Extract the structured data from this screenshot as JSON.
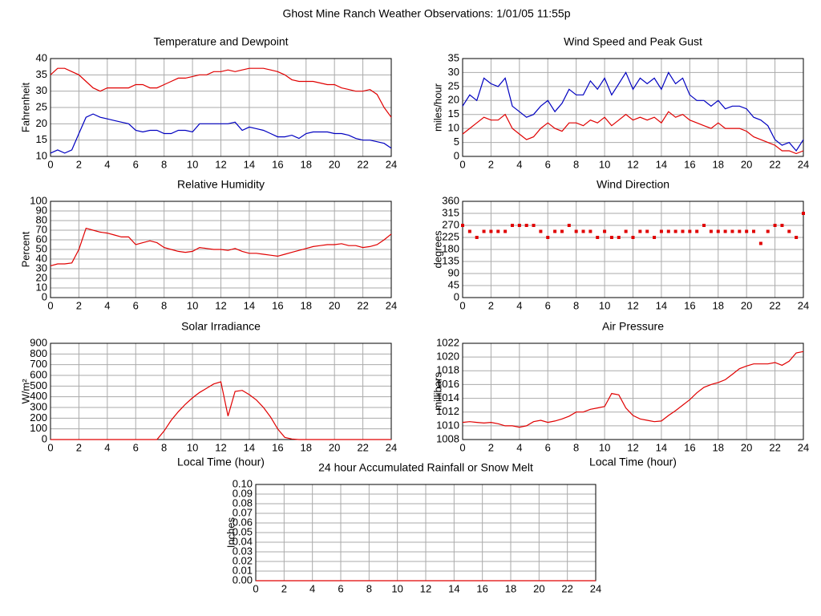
{
  "title": "Ghost Mine Ranch Weather Observations: 1/01/05 11:55p",
  "chart_data": [
    {
      "type": "line",
      "title": "Temperature and Dewpoint",
      "ylabel": "Fahrenheit",
      "grid": true,
      "x": [
        0,
        0.5,
        1,
        1.5,
        2,
        2.5,
        3,
        3.5,
        4,
        4.5,
        5,
        5.5,
        6,
        6.5,
        7,
        7.5,
        8,
        8.5,
        9,
        9.5,
        10,
        10.5,
        11,
        11.5,
        12,
        12.5,
        13,
        13.5,
        14,
        14.5,
        15,
        15.5,
        16,
        16.5,
        17,
        17.5,
        18,
        18.5,
        19,
        19.5,
        20,
        20.5,
        21,
        21.5,
        22,
        22.5,
        23,
        23.5,
        24
      ],
      "xlim": [
        0,
        24
      ],
      "xticks": [
        0,
        2,
        4,
        6,
        8,
        10,
        12,
        14,
        16,
        18,
        20,
        22,
        24
      ],
      "ylim": [
        10,
        40
      ],
      "yticks": [
        10,
        15,
        20,
        25,
        30,
        35,
        40
      ],
      "series": [
        {
          "name": "Temperature",
          "color": "#e00000",
          "values": [
            35,
            37,
            37,
            36,
            35,
            33,
            31,
            30,
            31,
            31,
            31,
            31,
            32,
            32,
            31,
            31,
            32,
            33,
            34,
            34,
            34.5,
            35,
            35,
            36,
            36,
            36.5,
            36,
            36.5,
            37,
            37,
            37,
            36.5,
            36,
            35,
            33.5,
            33,
            33,
            33,
            32.5,
            32,
            32,
            31,
            30.5,
            30,
            30,
            30.5,
            29,
            25,
            22
          ]
        },
        {
          "name": "Dewpoint",
          "color": "#0000c0",
          "values": [
            11,
            12,
            11,
            12,
            17,
            22,
            23,
            22,
            21.5,
            21,
            20.5,
            20,
            18,
            17.5,
            18,
            18,
            17,
            17,
            18,
            18,
            17.5,
            20,
            20,
            20,
            20,
            20,
            20.5,
            18,
            19,
            18.5,
            18,
            17,
            16,
            16,
            16.5,
            15.5,
            17,
            17.5,
            17.5,
            17.5,
            17,
            17,
            16.5,
            15.5,
            15,
            15,
            14.5,
            14,
            12.5
          ]
        }
      ]
    },
    {
      "type": "line",
      "title": "Wind Speed and Peak Gust",
      "ylabel": "miles/hour",
      "grid": true,
      "x": [
        0,
        0.5,
        1,
        1.5,
        2,
        2.5,
        3,
        3.5,
        4,
        4.5,
        5,
        5.5,
        6,
        6.5,
        7,
        7.5,
        8,
        8.5,
        9,
        9.5,
        10,
        10.5,
        11,
        11.5,
        12,
        12.5,
        13,
        13.5,
        14,
        14.5,
        15,
        15.5,
        16,
        16.5,
        17,
        17.5,
        18,
        18.5,
        19,
        19.5,
        20,
        20.5,
        21,
        21.5,
        22,
        22.5,
        23,
        23.5,
        24
      ],
      "xlim": [
        0,
        24
      ],
      "xticks": [
        0,
        2,
        4,
        6,
        8,
        10,
        12,
        14,
        16,
        18,
        20,
        22,
        24
      ],
      "ylim": [
        0,
        35
      ],
      "yticks": [
        0,
        5,
        10,
        15,
        20,
        25,
        30,
        35
      ],
      "series": [
        {
          "name": "Peak Gust",
          "color": "#0000c0",
          "values": [
            18,
            22,
            20,
            28,
            26,
            25,
            28,
            18,
            16,
            14,
            15,
            18,
            20,
            16,
            19,
            24,
            22,
            22,
            27,
            24,
            28,
            22,
            26,
            30,
            24,
            28,
            26,
            28,
            24,
            30,
            26,
            28,
            22,
            20,
            20,
            18,
            20,
            17,
            18,
            18,
            17,
            14,
            13,
            11,
            6,
            4,
            5,
            2,
            6
          ]
        },
        {
          "name": "Wind Speed",
          "color": "#e00000",
          "values": [
            8,
            10,
            12,
            14,
            13,
            13,
            15,
            10,
            8,
            6,
            7,
            10,
            12,
            10,
            9,
            12,
            12,
            11,
            13,
            12,
            14,
            11,
            13,
            15,
            13,
            14,
            13,
            14,
            12,
            16,
            14,
            15,
            13,
            12,
            11,
            10,
            12,
            10,
            10,
            10,
            9,
            7,
            6,
            5,
            4,
            2,
            2,
            1,
            2
          ]
        }
      ]
    },
    {
      "type": "line",
      "title": "Relative Humidity",
      "ylabel": "Percent",
      "grid": true,
      "x": [
        0,
        0.5,
        1,
        1.5,
        2,
        2.5,
        3,
        3.5,
        4,
        4.5,
        5,
        5.5,
        6,
        6.5,
        7,
        7.5,
        8,
        8.5,
        9,
        9.5,
        10,
        10.5,
        11,
        11.5,
        12,
        12.5,
        13,
        13.5,
        14,
        14.5,
        15,
        15.5,
        16,
        16.5,
        17,
        17.5,
        18,
        18.5,
        19,
        19.5,
        20,
        20.5,
        21,
        21.5,
        22,
        22.5,
        23,
        23.5,
        24
      ],
      "xlim": [
        0,
        24
      ],
      "xticks": [
        0,
        2,
        4,
        6,
        8,
        10,
        12,
        14,
        16,
        18,
        20,
        22,
        24
      ],
      "ylim": [
        0,
        100
      ],
      "yticks": [
        0,
        10,
        20,
        30,
        40,
        50,
        60,
        70,
        80,
        90,
        100
      ],
      "series": [
        {
          "name": "Relative Humidity",
          "color": "#e00000",
          "values": [
            33,
            35,
            35,
            36,
            50,
            72,
            70,
            68,
            67,
            65,
            63,
            63,
            55,
            57,
            59,
            57,
            52,
            50,
            48,
            47,
            48,
            52,
            51,
            50,
            50,
            49,
            51,
            48,
            46,
            46,
            45,
            44,
            43,
            45,
            47,
            49,
            51,
            53,
            54,
            55,
            55,
            56,
            54,
            54,
            52,
            53,
            55,
            60,
            66
          ]
        }
      ]
    },
    {
      "type": "scatter",
      "title": "Wind Direction",
      "ylabel": "degrees",
      "grid": true,
      "x": [
        0,
        0.5,
        1,
        1.5,
        2,
        2.5,
        3,
        3.5,
        4,
        4.5,
        5,
        5.5,
        6,
        6.5,
        7,
        7.5,
        8,
        8.5,
        9,
        9.5,
        10,
        10.5,
        11,
        11.5,
        12,
        12.5,
        13,
        13.5,
        14,
        14.5,
        15,
        15.5,
        16,
        16.5,
        17,
        17.5,
        18,
        18.5,
        19,
        19.5,
        20,
        20.5,
        21,
        21.5,
        22,
        22.5,
        23,
        23.5,
        24
      ],
      "xlim": [
        0,
        24
      ],
      "xticks": [
        0,
        2,
        4,
        6,
        8,
        10,
        12,
        14,
        16,
        18,
        20,
        22,
        24
      ],
      "ylim": [
        0,
        360
      ],
      "yticks": [
        0,
        45,
        90,
        135,
        180,
        225,
        270,
        315,
        360
      ],
      "series": [
        {
          "name": "Wind Direction",
          "color": "#e00000",
          "values": [
            270,
            247.5,
            225,
            247.5,
            247.5,
            247.5,
            247.5,
            270,
            270,
            270,
            270,
            247.5,
            225,
            247.5,
            247.5,
            270,
            247.5,
            247.5,
            247.5,
            225,
            247.5,
            225,
            225,
            247.5,
            225,
            247.5,
            247.5,
            225,
            247.5,
            247.5,
            247.5,
            247.5,
            247.5,
            247.5,
            270,
            247.5,
            247.5,
            247.5,
            247.5,
            247.5,
            247.5,
            247.5,
            202.5,
            247.5,
            270,
            270,
            247.5,
            225,
            315
          ]
        }
      ]
    },
    {
      "type": "line",
      "title": "Solar Irradiance",
      "ylabel": "W/m²",
      "xlabel": "Local Time (hour)",
      "grid": true,
      "x": [
        0,
        0.5,
        1,
        1.5,
        2,
        2.5,
        3,
        3.5,
        4,
        4.5,
        5,
        5.5,
        6,
        6.5,
        7,
        7.5,
        8,
        8.5,
        9,
        9.5,
        10,
        10.5,
        11,
        11.5,
        12,
        12.5,
        13,
        13.5,
        14,
        14.5,
        15,
        15.5,
        16,
        16.5,
        17,
        17.5,
        18,
        18.5,
        19,
        19.5,
        20,
        20.5,
        21,
        21.5,
        22,
        22.5,
        23,
        23.5,
        24
      ],
      "xlim": [
        0,
        24
      ],
      "xticks": [
        0,
        2,
        4,
        6,
        8,
        10,
        12,
        14,
        16,
        18,
        20,
        22,
        24
      ],
      "ylim": [
        0,
        900
      ],
      "yticks": [
        0,
        100,
        200,
        300,
        400,
        500,
        600,
        700,
        800,
        900
      ],
      "series": [
        {
          "name": "Solar Irradiance",
          "color": "#e00000",
          "values": [
            0,
            0,
            0,
            0,
            0,
            0,
            0,
            0,
            0,
            0,
            0,
            0,
            0,
            0,
            0,
            0,
            80,
            180,
            260,
            330,
            390,
            440,
            480,
            520,
            540,
            220,
            450,
            460,
            420,
            370,
            300,
            210,
            100,
            20,
            5,
            0,
            0,
            0,
            0,
            0,
            0,
            0,
            0,
            0,
            0,
            0,
            0,
            0,
            0
          ]
        }
      ]
    },
    {
      "type": "line",
      "title": "Air Pressure",
      "ylabel": "millibars",
      "xlabel": "Local Time (hour)",
      "grid": true,
      "x": [
        0,
        0.5,
        1,
        1.5,
        2,
        2.5,
        3,
        3.5,
        4,
        4.5,
        5,
        5.5,
        6,
        6.5,
        7,
        7.5,
        8,
        8.5,
        9,
        9.5,
        10,
        10.5,
        11,
        11.5,
        12,
        12.5,
        13,
        13.5,
        14,
        14.5,
        15,
        15.5,
        16,
        16.5,
        17,
        17.5,
        18,
        18.5,
        19,
        19.5,
        20,
        20.5,
        21,
        21.5,
        22,
        22.5,
        23,
        23.5,
        24
      ],
      "xlim": [
        0,
        24
      ],
      "xticks": [
        0,
        2,
        4,
        6,
        8,
        10,
        12,
        14,
        16,
        18,
        20,
        22,
        24
      ],
      "ylim": [
        1008,
        1022
      ],
      "yticks": [
        1008,
        1010,
        1012,
        1014,
        1016,
        1018,
        1020,
        1022
      ],
      "series": [
        {
          "name": "Air Pressure",
          "color": "#e00000",
          "values": [
            1010.5,
            1010.6,
            1010.5,
            1010.4,
            1010.5,
            1010.3,
            1010,
            1010,
            1009.8,
            1010,
            1010.6,
            1010.8,
            1010.5,
            1010.7,
            1011,
            1011.4,
            1012,
            1012,
            1012.4,
            1012.6,
            1012.8,
            1014.7,
            1014.5,
            1012.6,
            1011.5,
            1011,
            1010.8,
            1010.6,
            1010.7,
            1011.5,
            1012.2,
            1013,
            1013.8,
            1014.8,
            1015.6,
            1016,
            1016.3,
            1016.7,
            1017.5,
            1018.3,
            1018.7,
            1019,
            1019,
            1019,
            1019.2,
            1018.8,
            1019.4,
            1020.6,
            1020.8
          ]
        }
      ]
    },
    {
      "type": "line",
      "title": "24 hour Accumulated Rainfall or Snow Melt",
      "ylabel": "Inches",
      "grid": true,
      "x": [
        0,
        0.5,
        1,
        1.5,
        2,
        2.5,
        3,
        3.5,
        4,
        4.5,
        5,
        5.5,
        6,
        6.5,
        7,
        7.5,
        8,
        8.5,
        9,
        9.5,
        10,
        10.5,
        11,
        11.5,
        12,
        12.5,
        13,
        13.5,
        14,
        14.5,
        15,
        15.5,
        16,
        16.5,
        17,
        17.5,
        18,
        18.5,
        19,
        19.5,
        20,
        20.5,
        21,
        21.5,
        22,
        22.5,
        23,
        23.5,
        24
      ],
      "xlim": [
        0,
        24
      ],
      "xticks": [
        0,
        2,
        4,
        6,
        8,
        10,
        12,
        14,
        16,
        18,
        20,
        22,
        24
      ],
      "ylim": [
        0,
        0.1
      ],
      "yticks": [
        {
          "value": 0,
          "label": "0.00"
        },
        {
          "value": 0.01,
          "label": "0.01"
        },
        {
          "value": 0.02,
          "label": "0.02"
        },
        {
          "value": 0.03,
          "label": "0.03"
        },
        {
          "value": 0.04,
          "label": "0.04"
        },
        {
          "value": 0.05,
          "label": "0.05"
        },
        {
          "value": 0.06,
          "label": "0.06"
        },
        {
          "value": 0.07,
          "label": "0.07"
        },
        {
          "value": 0.08,
          "label": "0.08"
        },
        {
          "value": 0.09,
          "label": "0.09"
        },
        {
          "value": 0.1,
          "label": "0.10"
        }
      ],
      "series": [
        {
          "name": "Rainfall",
          "color": "#e00000",
          "values": [
            0,
            0,
            0,
            0,
            0,
            0,
            0,
            0,
            0,
            0,
            0,
            0,
            0,
            0,
            0,
            0,
            0,
            0,
            0,
            0,
            0,
            0,
            0,
            0,
            0,
            0,
            0,
            0,
            0,
            0,
            0,
            0,
            0,
            0,
            0,
            0,
            0,
            0,
            0,
            0,
            0,
            0,
            0,
            0,
            0,
            0,
            0,
            0,
            0
          ]
        }
      ]
    }
  ]
}
